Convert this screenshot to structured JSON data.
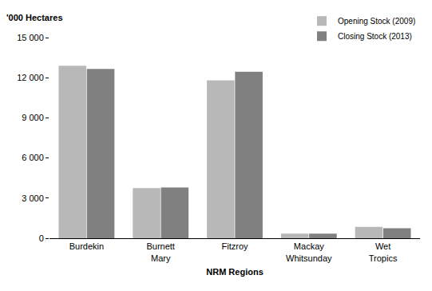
{
  "chart_data": {
    "type": "bar",
    "y_label": "'000 Hectares",
    "x_label": "NRM Regions",
    "categories": [
      "Burdekin",
      "Burnett Mary",
      "Fitzroy",
      "Mackay Whitsunday",
      "Wet Tropics"
    ],
    "series": [
      {
        "name": "Opening Stock (2009)",
        "color": "#b8b8b8",
        "values": [
          12900,
          3750,
          11800,
          350,
          850
        ]
      },
      {
        "name": "Closing Stock (2013)",
        "color": "#808080",
        "values": [
          12650,
          3800,
          12450,
          350,
          750
        ]
      }
    ],
    "ylim": [
      0,
      15000
    ],
    "yticks": [
      0,
      {
        "value": 3000,
        "label": "3 000"
      },
      {
        "value": 6000,
        "label": "6 000"
      },
      {
        "value": 9000,
        "label": "9 000"
      },
      {
        "value": 12000,
        "label": "12 000"
      },
      {
        "value": 15000,
        "label": "15 000"
      }
    ],
    "grid": true,
    "legend": "upper right"
  }
}
